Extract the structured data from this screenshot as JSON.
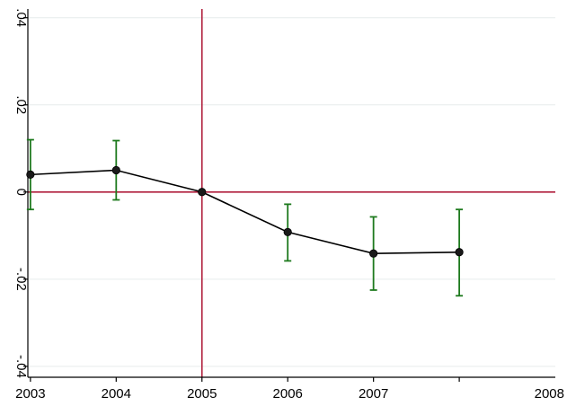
{
  "chart_data": {
    "type": "line",
    "x": [
      2003,
      2004,
      2005,
      2006,
      2007,
      2008
    ],
    "x_tick_labels": [
      "2003",
      "2004",
      "2005",
      "2006",
      "2007",
      "2008"
    ],
    "series": [
      {
        "values": [
          0.004,
          0.005,
          0.0,
          -0.0092,
          -0.0141,
          -0.0138
        ],
        "ci_lower": [
          -0.004,
          -0.0018,
          0.0,
          -0.0158,
          -0.0225,
          -0.0238
        ],
        "ci_upper": [
          0.012,
          0.0118,
          0.0,
          -0.0028,
          -0.0057,
          -0.004
        ]
      }
    ],
    "y_ticks": [
      -0.04,
      -0.02,
      0,
      0.02,
      0.04
    ],
    "y_tick_labels": [
      "-.04",
      "-.02",
      "0",
      ".02",
      ".04"
    ],
    "xlim": [
      2002.97,
      2009.12
    ],
    "ylim": [
      -0.0425,
      0.042
    ],
    "reference_lines": {
      "horizontal_y": 0,
      "vertical_x": 2005
    },
    "grid": true,
    "title": "",
    "xlabel": "",
    "ylabel": "",
    "colors": {
      "line": "#000000",
      "marker": "#1a1a1a",
      "error_bar": "#1e7a1e",
      "reference_line": "#b01e3c",
      "grid": "#e6ecec",
      "axis": "#000000"
    }
  }
}
